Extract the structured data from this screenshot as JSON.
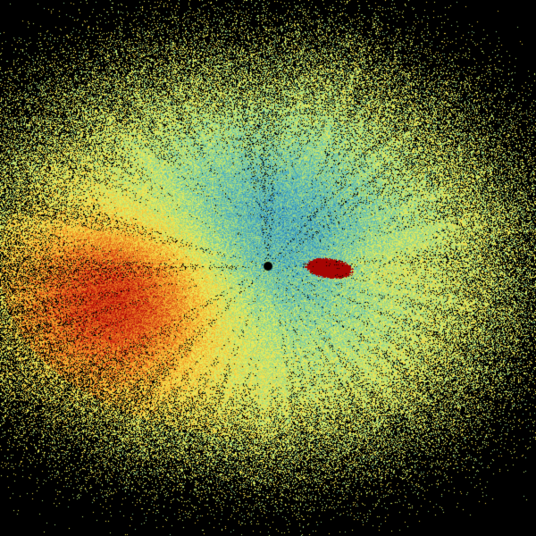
{
  "image": {
    "kind": "radar-sweep",
    "background_color": "#000000",
    "colormap": [
      "#2166ac",
      "#3a9bc1",
      "#67c2b5",
      "#a8dc7a",
      "#e8f060",
      "#f6d040",
      "#f29a28",
      "#de5a18",
      "#c41a10",
      "#a00000"
    ],
    "radar_site_marker_color": "#000000"
  }
}
